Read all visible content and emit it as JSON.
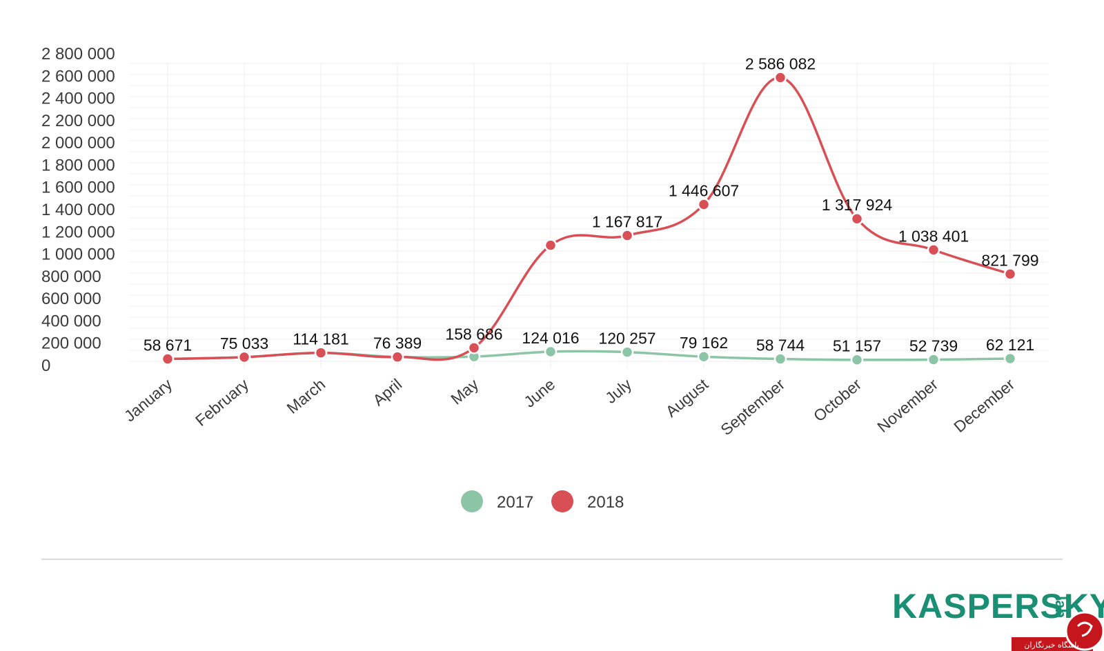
{
  "chart_data": {
    "type": "line",
    "categories": [
      "January",
      "February",
      "March",
      "April",
      "May",
      "June",
      "July",
      "August",
      "September",
      "October",
      "November",
      "December"
    ],
    "series": [
      {
        "name": "2017",
        "color": "#8cc5a6",
        "values": [
          58671,
          75033,
          114181,
          76389,
          80000,
          124016,
          120257,
          79162,
          58744,
          51157,
          52739,
          62121
        ],
        "labels": [
          "58 671",
          "75 033",
          "114 181",
          "76 389",
          "",
          "124 016",
          "120 257",
          "79 162",
          "58 744",
          "51 157",
          "52 739",
          "62 121"
        ]
      },
      {
        "name": "2018",
        "color": "#d84f55",
        "values": [
          58671,
          75033,
          114181,
          76389,
          158686,
          1080000,
          1167817,
          1446607,
          2586082,
          1317924,
          1038401,
          821799
        ],
        "labels": [
          "",
          "",
          "",
          "",
          "158 686",
          "",
          "1 167 817",
          "1 446 607",
          "2 586 082",
          "1 317 924",
          "1 038 401",
          "821 799"
        ]
      }
    ],
    "ylim": [
      0,
      2800000
    ],
    "yticks": [
      "0",
      "200 000",
      "400 000",
      "600 000",
      "800 000",
      "1 000 000",
      "1 200 000",
      "1 400 000",
      "1 600 000",
      "1 800 000",
      "2 000 000",
      "2 200 000",
      "2 400 000",
      "2 600 000",
      "2 800 000"
    ],
    "grid": true,
    "legend_position": "bottom-center"
  },
  "branding": {
    "logo_text": "KASPERSKY",
    "logo_suffix": "lab",
    "logo_color": "#1a8f73",
    "watermark_text": "باشگاه خبرنگاران",
    "watermark_color": "#c4161c"
  }
}
